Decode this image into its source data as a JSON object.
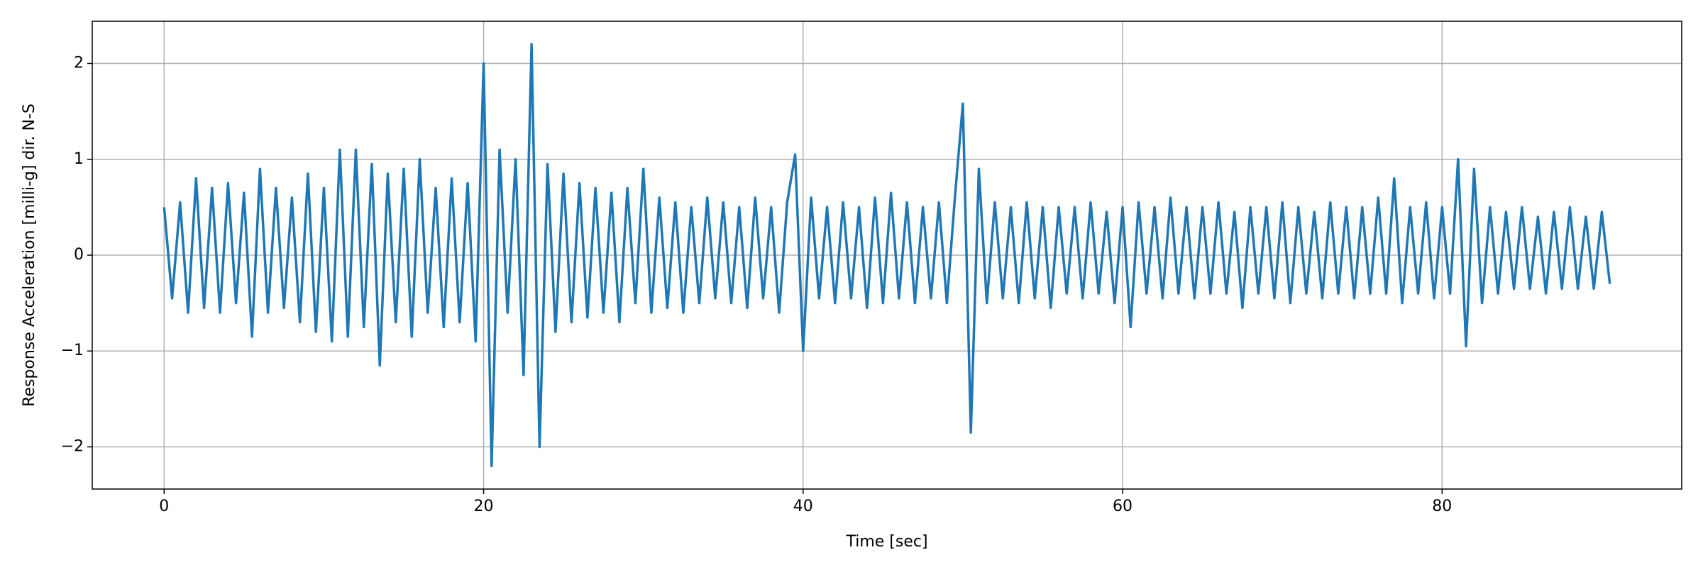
{
  "chart_data": {
    "type": "line",
    "xlabel": "Time [sec]",
    "ylabel": "Response Acceleration [milli-g] dir. N-S",
    "color": "#1f77b4",
    "grid": true,
    "xlim": [
      -4.5,
      95
    ],
    "ylim": [
      -2.44,
      2.44
    ],
    "xticks": [
      0,
      20,
      40,
      60,
      80
    ],
    "yticks": [
      {
        "value": -2,
        "label": "−2"
      },
      {
        "value": -1,
        "label": "−1"
      },
      0,
      1,
      2
    ],
    "x": [
      0,
      0.5,
      1,
      1.5,
      2,
      2.5,
      3,
      3.5,
      4,
      4.5,
      5,
      5.5,
      6,
      6.5,
      7,
      7.5,
      8,
      8.5,
      9,
      9.5,
      10,
      10.5,
      11,
      11.5,
      12,
      12.5,
      13,
      13.5,
      14,
      14.5,
      15,
      15.5,
      16,
      16.5,
      17,
      17.5,
      18,
      18.5,
      19,
      19.5,
      20,
      20.5,
      21,
      21.5,
      22,
      22.5,
      23,
      23.5,
      24,
      24.5,
      25,
      25.5,
      26,
      26.5,
      27,
      27.5,
      28,
      28.5,
      29,
      29.5,
      30,
      30.5,
      31,
      31.5,
      32,
      32.5,
      33,
      33.5,
      34,
      34.5,
      35,
      35.5,
      36,
      36.5,
      37,
      37.5,
      38,
      38.5,
      39,
      39.5,
      40,
      40.5,
      41,
      41.5,
      42,
      42.5,
      43,
      43.5,
      44,
      44.5,
      45,
      45.5,
      46,
      46.5,
      47,
      47.5,
      48,
      48.5,
      49,
      49.5,
      50,
      50.5,
      51,
      51.5,
      52,
      52.5,
      53,
      53.5,
      54,
      54.5,
      55,
      55.5,
      56,
      56.5,
      57,
      57.5,
      58,
      58.5,
      59,
      59.5,
      60,
      60.5,
      61,
      61.5,
      62,
      62.5,
      63,
      63.5,
      64,
      64.5,
      65,
      65.5,
      66,
      66.5,
      67,
      67.5,
      68,
      68.5,
      69,
      69.5,
      70,
      70.5,
      71,
      71.5,
      72,
      72.5,
      73,
      73.5,
      74,
      74.5,
      75,
      75.5,
      76,
      76.5,
      77,
      77.5,
      78,
      78.5,
      79,
      79.5,
      80,
      80.5,
      81,
      81.5,
      82,
      82.5,
      83,
      83.5,
      84,
      84.5,
      85,
      85.5,
      86,
      86.5,
      87,
      87.5,
      88,
      88.5,
      89,
      89.5,
      90,
      90.5
    ],
    "values": [
      0.5,
      -0.45,
      0.55,
      -0.6,
      0.8,
      -0.55,
      0.7,
      -0.6,
      0.75,
      -0.5,
      0.65,
      -0.85,
      0.9,
      -0.6,
      0.7,
      -0.55,
      0.6,
      -0.7,
      0.85,
      -0.8,
      0.7,
      -0.9,
      1.1,
      -0.85,
      1.1,
      -0.75,
      0.95,
      -1.15,
      0.85,
      -0.7,
      0.9,
      -0.85,
      1.0,
      -0.6,
      0.7,
      -0.75,
      0.8,
      -0.7,
      0.75,
      -0.9,
      2.0,
      -2.2,
      1.1,
      -0.6,
      1.0,
      -1.25,
      2.2,
      -2.0,
      0.95,
      -0.8,
      0.85,
      -0.7,
      0.75,
      -0.65,
      0.7,
      -0.6,
      0.65,
      -0.7,
      0.7,
      -0.5,
      0.9,
      -0.6,
      0.6,
      -0.55,
      0.55,
      -0.6,
      0.5,
      -0.5,
      0.6,
      -0.45,
      0.55,
      -0.5,
      0.5,
      -0.55,
      0.6,
      -0.45,
      0.5,
      -0.6,
      0.55,
      1.05,
      -1.0,
      0.6,
      -0.45,
      0.5,
      -0.5,
      0.55,
      -0.45,
      0.5,
      -0.55,
      0.6,
      -0.5,
      0.65,
      -0.45,
      0.55,
      -0.5,
      0.5,
      -0.45,
      0.55,
      -0.5,
      0.6,
      1.58,
      -1.85,
      0.9,
      -0.5,
      0.55,
      -0.45,
      0.5,
      -0.5,
      0.55,
      -0.45,
      0.5,
      -0.55,
      0.5,
      -0.4,
      0.5,
      -0.45,
      0.55,
      -0.4,
      0.45,
      -0.5,
      0.5,
      -0.75,
      0.55,
      -0.4,
      0.5,
      -0.45,
      0.6,
      -0.4,
      0.5,
      -0.45,
      0.5,
      -0.4,
      0.55,
      -0.4,
      0.45,
      -0.55,
      0.5,
      -0.4,
      0.5,
      -0.45,
      0.55,
      -0.5,
      0.5,
      -0.4,
      0.45,
      -0.45,
      0.55,
      -0.4,
      0.5,
      -0.45,
      0.5,
      -0.4,
      0.6,
      -0.4,
      0.8,
      -0.5,
      0.5,
      -0.4,
      0.55,
      -0.45,
      0.5,
      -0.4,
      1.0,
      -0.95,
      0.9,
      -0.5,
      0.5,
      -0.4,
      0.45,
      -0.35,
      0.5,
      -0.35,
      0.4,
      -0.4,
      0.45,
      -0.35,
      0.5,
      -0.35,
      0.4,
      -0.35,
      0.45,
      -0.3
    ]
  }
}
